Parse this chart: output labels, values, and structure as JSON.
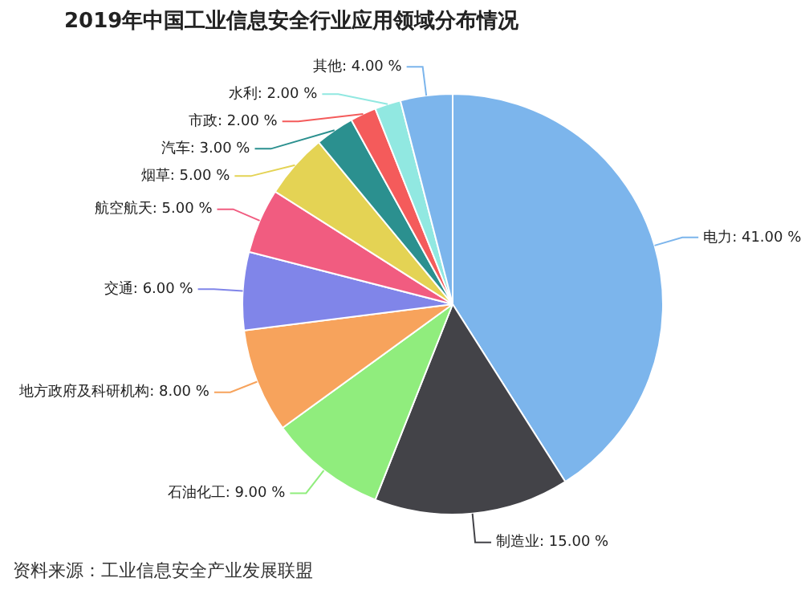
{
  "chart_data": {
    "type": "pie",
    "title": "2019年中国工业信息安全行业应用领域分布情况",
    "categories": [
      "电力",
      "制造业",
      "石油化工",
      "地方政府及科研机构",
      "交通",
      "航空航天",
      "烟草",
      "汽车",
      "市政",
      "水利",
      "其他"
    ],
    "values": [
      41,
      15,
      9,
      8,
      6,
      5,
      5,
      3,
      2,
      2,
      4
    ],
    "value_labels": [
      "41.00 %",
      "15.00 %",
      "9.00 %",
      "8.00 %",
      "6.00 %",
      "5.00 %",
      "5.00 %",
      "3.00 %",
      "2.00 %",
      "2.00 %",
      "4.00 %"
    ],
    "colors": [
      "#7cb5ec",
      "#434348",
      "#90ed7d",
      "#f7a35c",
      "#8085e9",
      "#f15c80",
      "#e4d354",
      "#2b908f",
      "#f45b5b",
      "#91e8e1",
      "#7cb5ec"
    ],
    "legend": false,
    "annotations": [
      "资料来源：工业信息安全产业发展联盟"
    ]
  }
}
